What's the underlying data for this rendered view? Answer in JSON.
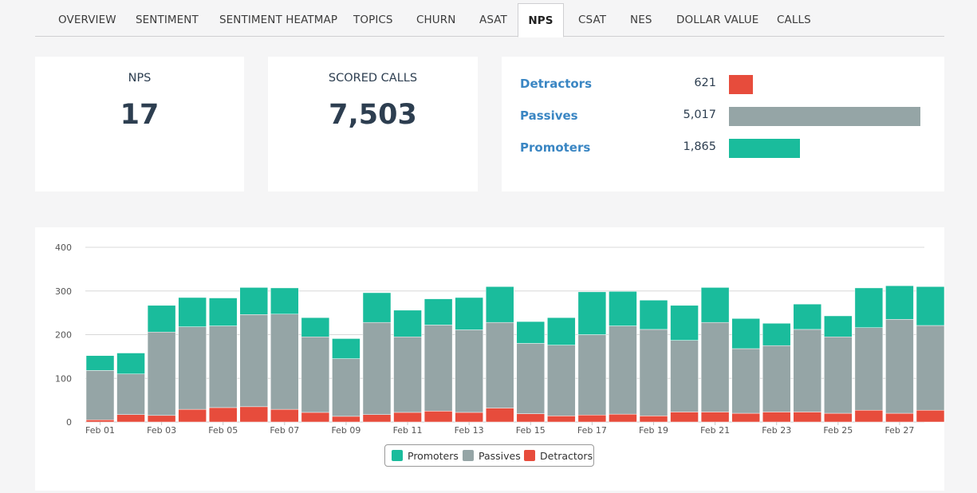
{
  "tabs": [
    {
      "label": "OVERVIEW",
      "active": false
    },
    {
      "label": "SENTIMENT",
      "active": false
    },
    {
      "label": "SENTIMENT HEATMAP",
      "active": false
    },
    {
      "label": "TOPICS",
      "active": false
    },
    {
      "label": "CHURN",
      "active": false
    },
    {
      "label": "ASAT",
      "active": false
    },
    {
      "label": "NPS",
      "active": true
    },
    {
      "label": "CSAT",
      "active": false
    },
    {
      "label": "NES",
      "active": false
    },
    {
      "label": "DOLLAR VALUE",
      "active": false
    },
    {
      "label": "CALLS",
      "active": false
    }
  ],
  "nps_card": {
    "label": "NPS",
    "value": "17"
  },
  "scored_card": {
    "label": "SCORED CALLS",
    "value": "7,503"
  },
  "distribution": {
    "rows": [
      {
        "name": "Detractors",
        "count": "621",
        "value": 621,
        "color": "#e74c3c"
      },
      {
        "name": "Passives",
        "count": "5,017",
        "value": 5017,
        "color": "#95a5a6"
      },
      {
        "name": "Promoters",
        "count": "1,865",
        "value": 1865,
        "color": "#1abc9c"
      }
    ],
    "max": 5017
  },
  "colors": {
    "promoters": "#1abc9c",
    "passives": "#95a5a6",
    "detractors": "#e74c3c"
  },
  "chart_data": {
    "type": "bar",
    "stacked": true,
    "ylim": [
      0,
      400
    ],
    "yticks": [
      "0",
      "100",
      "200",
      "300",
      "400"
    ],
    "grid": true,
    "legend_position": "bottom",
    "xtick_labels": [
      "Feb 01",
      "Feb 03",
      "Feb 05",
      "Feb 07",
      "Feb 09",
      "Feb 11",
      "Feb 13",
      "Feb 15",
      "Feb 17",
      "Feb 19",
      "Feb 21",
      "Feb 23",
      "Feb 25",
      "Feb 27"
    ],
    "categories": [
      "Feb 01",
      "Feb 02",
      "Feb 03",
      "Feb 04",
      "Feb 05",
      "Feb 06",
      "Feb 07",
      "Feb 08",
      "Feb 09",
      "Feb 10",
      "Feb 11",
      "Feb 12",
      "Feb 13",
      "Feb 14",
      "Feb 15",
      "Feb 16",
      "Feb 17",
      "Feb 18",
      "Feb 19",
      "Feb 20",
      "Feb 21",
      "Feb 22",
      "Feb 23",
      "Feb 24",
      "Feb 25",
      "Feb 26",
      "Feb 27",
      "Feb 28"
    ],
    "series": [
      {
        "name": "Detractors",
        "color": "#e74c3c",
        "values": [
          5,
          17,
          15,
          29,
          33,
          35,
          29,
          22,
          13,
          17,
          22,
          25,
          22,
          32,
          19,
          14,
          16,
          18,
          14,
          23,
          23,
          20,
          23,
          23,
          20,
          27,
          20,
          27
        ]
      },
      {
        "name": "Passives",
        "color": "#95a5a6",
        "values": [
          113,
          93,
          191,
          189,
          187,
          211,
          218,
          173,
          132,
          211,
          173,
          197,
          189,
          196,
          161,
          162,
          184,
          202,
          198,
          164,
          205,
          148,
          152,
          189,
          175,
          189,
          215,
          194
        ]
      },
      {
        "name": "Promoters",
        "color": "#1abc9c",
        "values": [
          34,
          48,
          61,
          67,
          64,
          62,
          60,
          44,
          46,
          68,
          61,
          60,
          74,
          82,
          50,
          63,
          98,
          79,
          67,
          80,
          80,
          69,
          51,
          58,
          48,
          91,
          77,
          89
        ]
      }
    ]
  }
}
